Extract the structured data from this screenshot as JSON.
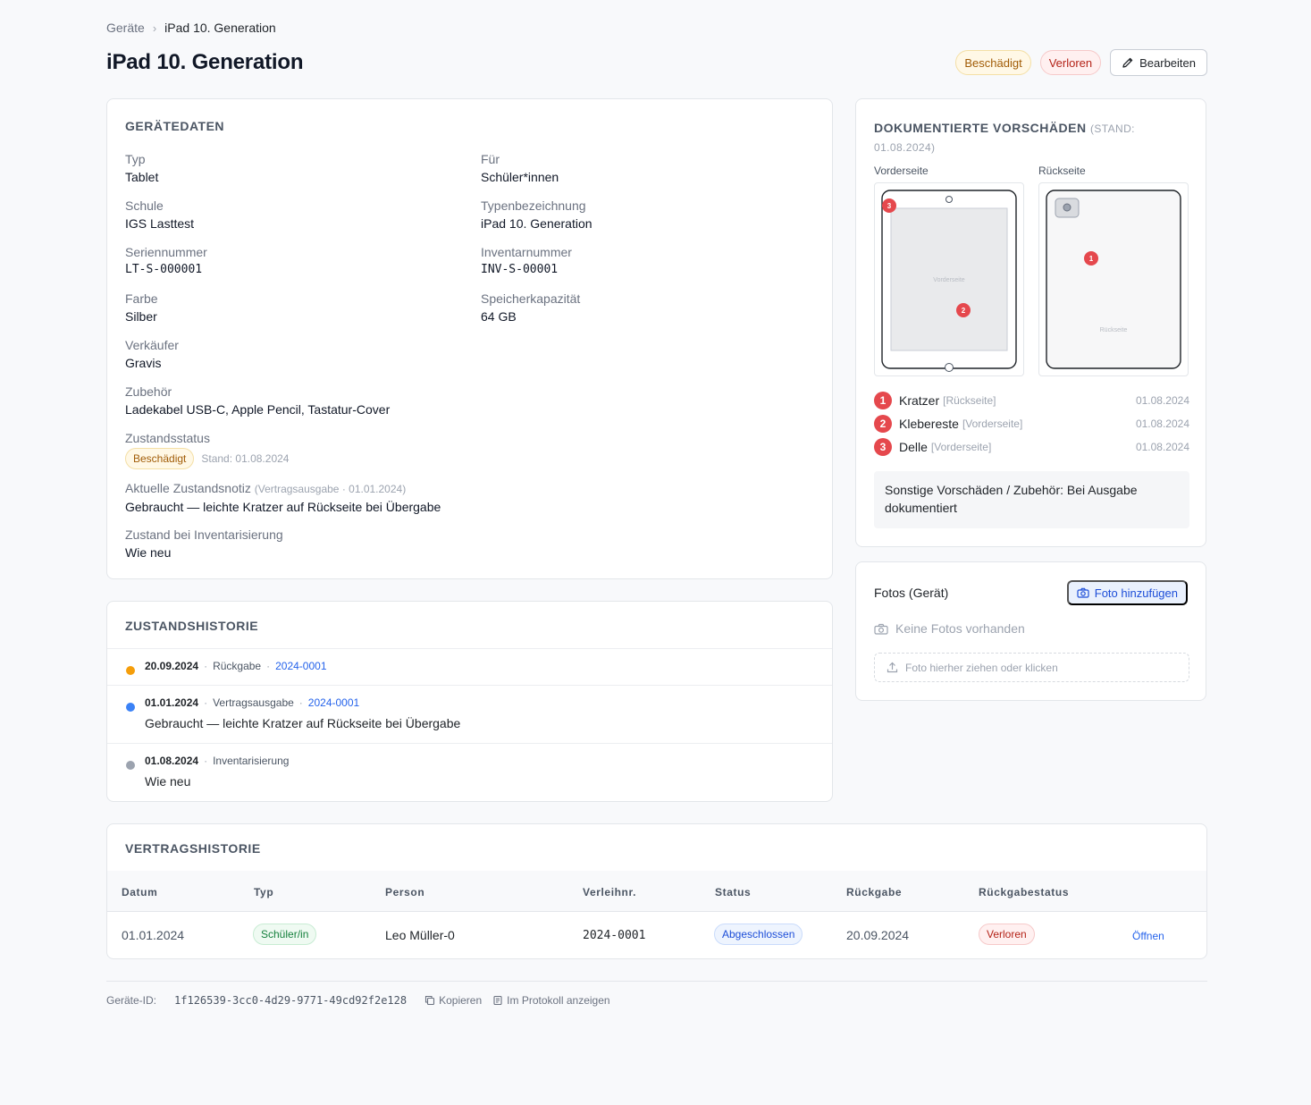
{
  "breadcrumb": {
    "root": "Geräte",
    "current": "iPad 10. Generation"
  },
  "page_title": "iPad 10. Generation",
  "header": {
    "badge_damaged": "Beschädigt",
    "badge_lost": "Verloren",
    "edit_label": "Bearbeiten"
  },
  "geraetedaten": {
    "title": "Gerätedaten",
    "typ": {
      "label": "Typ",
      "value": "Tablet"
    },
    "fuer": {
      "label": "Für",
      "value": "Schüler*innen"
    },
    "schule": {
      "label": "Schule",
      "value": "IGS Lasttest"
    },
    "typenbezeichnung": {
      "label": "Typenbezeichnung",
      "value": "iPad 10. Generation"
    },
    "seriennummer": {
      "label": "Seriennummer",
      "value": "LT-S-000001"
    },
    "inventarnummer": {
      "label": "Inventarnummer",
      "value": "INV-S-00001"
    },
    "farbe": {
      "label": "Farbe",
      "value": "Silber"
    },
    "speicher": {
      "label": "Speicherkapazität",
      "value": "64 GB"
    },
    "verkaeufer": {
      "label": "Verkäufer",
      "value": "Gravis"
    },
    "zubehoer": {
      "label": "Zubehör",
      "value": "Ladekabel USB-C, Apple Pencil, Tastatur-Cover"
    },
    "zustandsstatus": {
      "label": "Zustandsstatus",
      "badge": "Beschädigt",
      "stand": "Stand: 01.08.2024"
    },
    "notiz": {
      "label": "Aktuelle Zustandsnotiz",
      "meta": "(Vertragsausgabe · 01.01.2024)",
      "value": "Gebraucht — leichte Kratzer auf Rückseite bei Übergabe"
    },
    "inventarisierung": {
      "label": "Zustand bei Inventarisierung",
      "value": "Wie neu"
    }
  },
  "zustandshistorie": {
    "title": "Zustandshistorie",
    "entries": [
      {
        "date": "20.09.2024",
        "type": "Rückgabe",
        "link": "2024-0001",
        "note": "",
        "color": "#f59e0b"
      },
      {
        "date": "01.01.2024",
        "type": "Vertragsausgabe",
        "link": "2024-0001",
        "note": "Gebraucht — leichte Kratzer auf Rückseite bei Übergabe",
        "color": "#3b82f6"
      },
      {
        "date": "01.08.2024",
        "type": "Inventarisierung",
        "link": "",
        "note": "Wie neu",
        "color": "#9ca3af"
      }
    ]
  },
  "vorschaeden": {
    "title": "Dokumentierte Vorschäden",
    "stand": "(Stand: 01.08.2024)",
    "front_label": "Vorderseite",
    "back_label": "Rückseite",
    "front_watermark": "Vorderseite",
    "back_watermark": "Rückseite",
    "items": [
      {
        "num": "1",
        "name": "Kratzer",
        "side": "[Rückseite]",
        "date": "01.08.2024"
      },
      {
        "num": "2",
        "name": "Klebereste",
        "side": "[Vorderseite]",
        "date": "01.08.2024"
      },
      {
        "num": "3",
        "name": "Delle",
        "side": "[Vorderseite]",
        "date": "01.08.2024"
      }
    ],
    "note": "Sonstige Vorschäden / Zubehör: Bei Ausgabe dokumentiert",
    "marker_color": "#e5484d"
  },
  "fotos": {
    "title": "Fotos (Gerät)",
    "add_label": "Foto hinzufügen",
    "empty": "Keine Fotos vorhanden",
    "dropzone": "Foto hierher ziehen oder klicken"
  },
  "vertragshistorie": {
    "title": "Vertragshistorie",
    "columns": [
      "Datum",
      "Typ",
      "Person",
      "Verleihnr.",
      "Status",
      "Rückgabe",
      "Rückgabestatus"
    ],
    "rows": [
      {
        "datum": "01.01.2024",
        "typ": "Schüler/in",
        "person": "Leo Müller-0",
        "verleihnr": "2024-0001",
        "status": "Abgeschlossen",
        "rueckgabe": "20.09.2024",
        "rueckgabestatus": "Verloren",
        "action": "Öffnen"
      }
    ]
  },
  "footer": {
    "id_label": "Geräte-ID:",
    "id_value": "1f126539-3cc0-4d29-9771-49cd92f2e128",
    "copy_label": "Kopieren",
    "log_label": "Im Protokoll anzeigen"
  },
  "colors": {
    "accent_blue": "#2563eb",
    "damage_red": "#e5484d",
    "warning_amber": "#a15c07"
  },
  "icons": [
    "chevron-right-icon",
    "pencil-icon",
    "camera-icon",
    "upload-icon",
    "copy-icon",
    "log-icon"
  ]
}
